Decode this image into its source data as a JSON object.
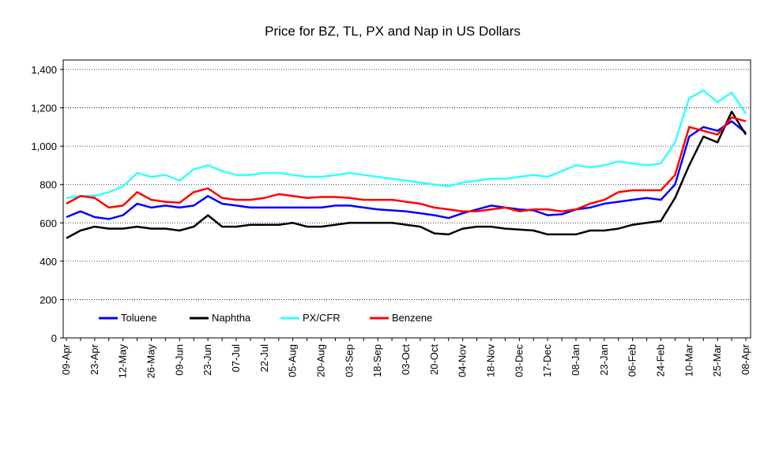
{
  "chart_data": {
    "type": "line",
    "title": "Price for BZ, TL, PX and Nap in US Dollars",
    "categories": [
      "09-Apr",
      null,
      "23-Apr",
      null,
      "12-May",
      null,
      "26-May",
      null,
      "09-Jun",
      null,
      "23-Jun",
      null,
      "07-Jul",
      null,
      "22-Jul",
      null,
      "05-Aug",
      null,
      "20-Aug",
      null,
      "03-Sep",
      null,
      "18-Sep",
      null,
      "03-Oct",
      null,
      "20-Oct",
      null,
      "04-Nov",
      null,
      "18-Nov",
      null,
      "03-Dec",
      null,
      "17-Dec",
      null,
      "08-Jan",
      null,
      "23-Jan",
      null,
      "06-Feb",
      null,
      "24-Feb",
      null,
      "10-Mar",
      null,
      "25-Mar",
      null,
      "08-Apr"
    ],
    "series": [
      {
        "name": "Toluene",
        "color": "#0000ff",
        "values": [
          630,
          660,
          630,
          620,
          640,
          700,
          680,
          690,
          680,
          690,
          740,
          700,
          690,
          680,
          680,
          680,
          680,
          680,
          680,
          690,
          690,
          680,
          670,
          665,
          660,
          650,
          640,
          625,
          650,
          670,
          690,
          680,
          670,
          665,
          640,
          645,
          670,
          680,
          700,
          710,
          720,
          730,
          720,
          800,
          1050,
          1100,
          1080,
          1130,
          1070
        ]
      },
      {
        "name": "Naphtha",
        "color": "#000000",
        "values": [
          520,
          560,
          580,
          570,
          570,
          580,
          570,
          570,
          560,
          580,
          640,
          580,
          580,
          590,
          590,
          590,
          600,
          580,
          580,
          590,
          600,
          600,
          600,
          600,
          590,
          580,
          545,
          540,
          570,
          580,
          580,
          570,
          565,
          560,
          540,
          540,
          540,
          560,
          560,
          570,
          590,
          600,
          610,
          730,
          900,
          1050,
          1020,
          1180,
          1060
        ]
      },
      {
        "name": "PX/CFR",
        "color": "#33ffff",
        "values": [
          730,
          740,
          740,
          760,
          790,
          860,
          840,
          850,
          820,
          880,
          900,
          870,
          850,
          850,
          860,
          860,
          850,
          840,
          840,
          850,
          860,
          850,
          840,
          830,
          820,
          810,
          800,
          790,
          810,
          820,
          830,
          830,
          840,
          850,
          840,
          870,
          900,
          890,
          900,
          920,
          910,
          900,
          910,
          1020,
          1250,
          1290,
          1230,
          1280,
          1170
        ]
      },
      {
        "name": "Benzene",
        "color": "#ff0000",
        "values": [
          700,
          740,
          730,
          680,
          690,
          760,
          720,
          710,
          705,
          760,
          780,
          730,
          720,
          720,
          730,
          750,
          740,
          730,
          735,
          735,
          730,
          720,
          720,
          720,
          710,
          700,
          680,
          670,
          660,
          660,
          670,
          680,
          660,
          670,
          670,
          660,
          670,
          700,
          720,
          760,
          770,
          770,
          770,
          850,
          1100,
          1080,
          1060,
          1150,
          1130
        ]
      }
    ],
    "ylim": [
      0,
      1400
    ],
    "yticks": [
      0,
      200,
      400,
      600,
      800,
      {
        "value": 1000,
        "label": "1,000"
      },
      {
        "value": 1200,
        "label": "1,200"
      },
      {
        "value": 1400,
        "label": "1,400"
      }
    ],
    "grid": true,
    "legend": "lower left"
  }
}
